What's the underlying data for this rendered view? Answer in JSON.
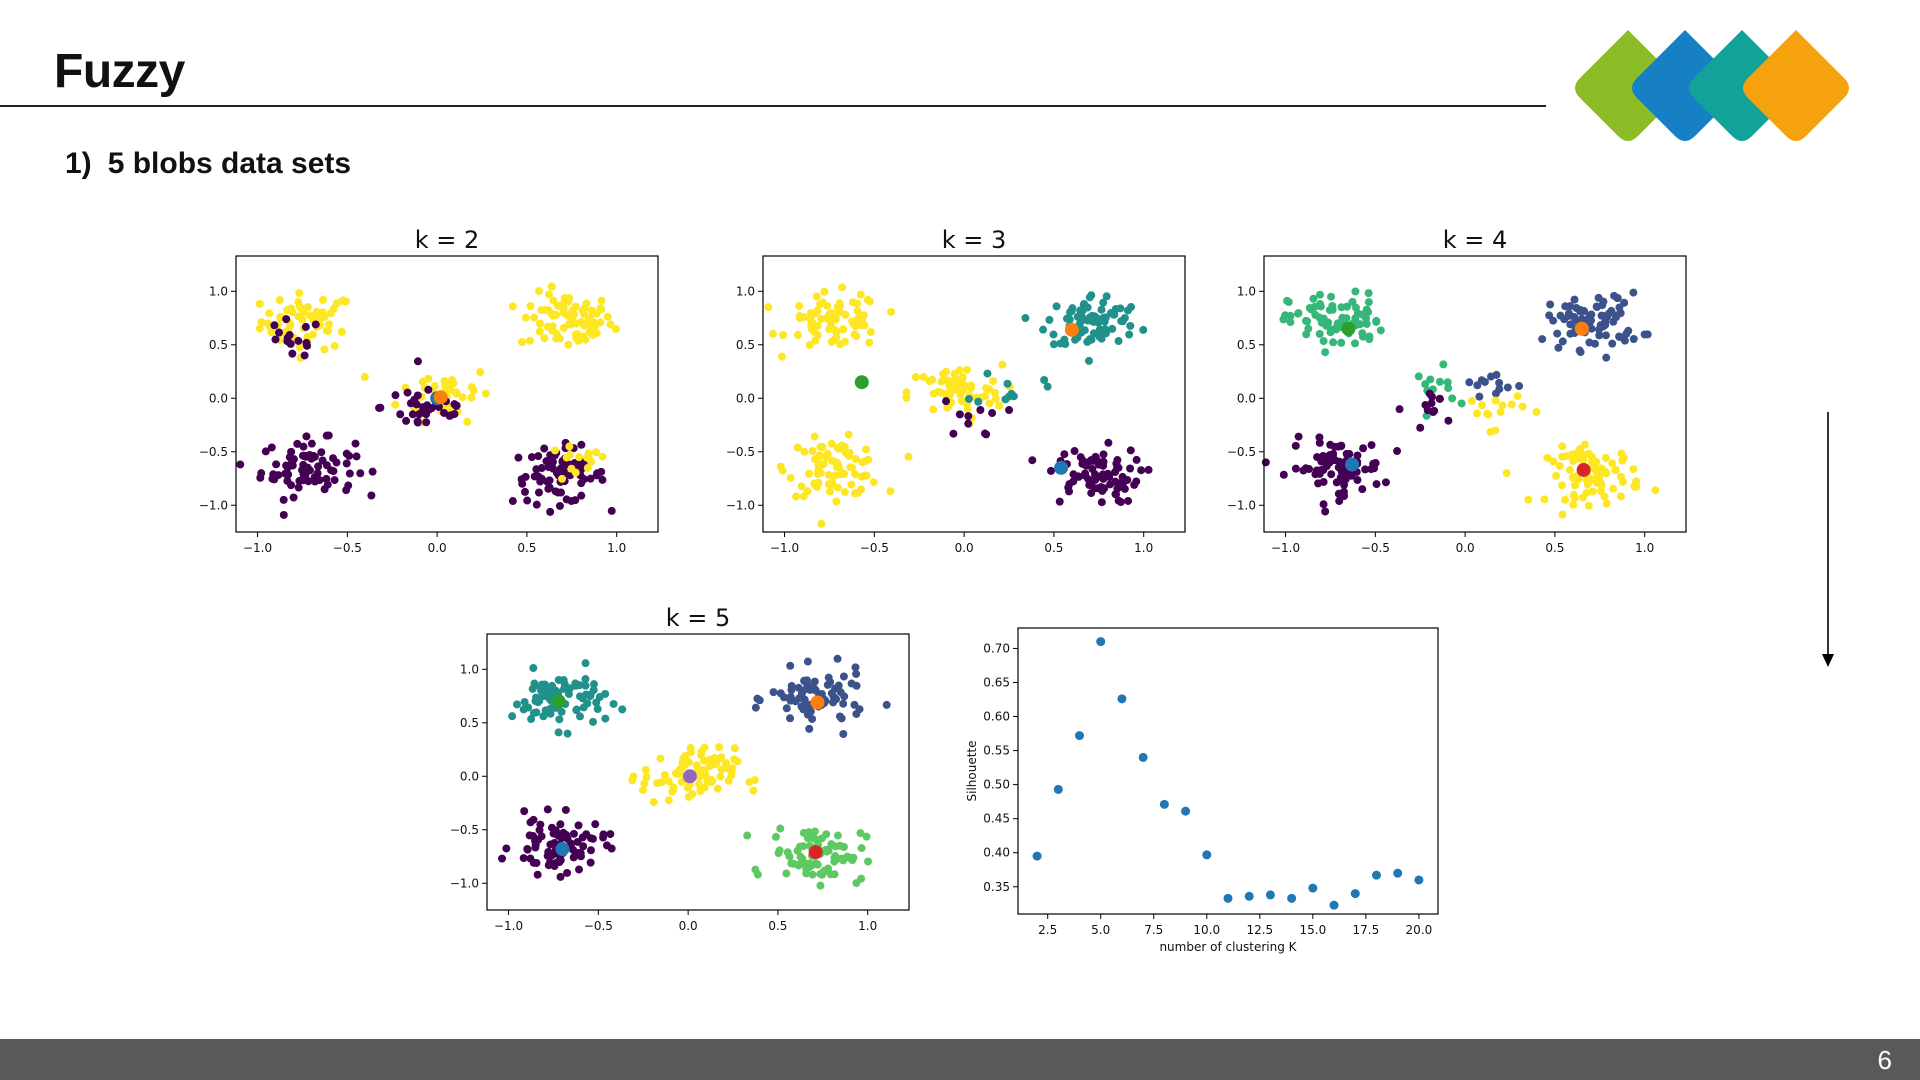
{
  "slide": {
    "title": "Fuzzy",
    "subtitle_number": "1)",
    "subtitle_text": "5 blobs data sets",
    "page_number": "6"
  },
  "logo": {
    "colors": [
      "#8cbd27",
      "#1780c4",
      "#11a39a",
      "#f6a20f"
    ]
  },
  "point_colors": {
    "purple": "#440154",
    "yellow": "#fde725",
    "teal": "#21918c",
    "blue": "#3b528b",
    "green": "#5ec962",
    "mint": "#35b779",
    "centroid_blue": "#1f77b4",
    "centroid_orange": "#ff7f0e",
    "centroid_green": "#2ca02c",
    "centroid_red": "#d62728",
    "centroid_purple": "#9467bd"
  },
  "chart_data": [
    {
      "type": "scatter",
      "title": "k = 2",
      "xlim": [
        -1.12,
        1.23
      ],
      "ylim": [
        -1.25,
        1.33
      ],
      "xticks": [
        -1.0,
        -0.5,
        0.0,
        0.5,
        1.0
      ],
      "xtick_labels": [
        "−1.0",
        "−0.5",
        "0.0",
        "0.5",
        "1.0"
      ],
      "yticks": [
        1.0,
        0.5,
        0.0,
        -0.5,
        -1.0
      ],
      "ytick_labels": [
        "1.0",
        "0.5",
        "0.0",
        "−0.5",
        "−1.0"
      ],
      "blobs": [
        {
          "cx": -0.72,
          "cy": 0.72,
          "color": "yellow",
          "n": 60
        },
        {
          "cx": 0.72,
          "cy": 0.72,
          "color": "yellow",
          "n": 80
        },
        {
          "cx": 0.05,
          "cy": 0.05,
          "color": "yellow",
          "n": 45
        },
        {
          "cx": -0.72,
          "cy": -0.65,
          "color": "purple",
          "n": 80
        },
        {
          "cx": 0.68,
          "cy": -0.72,
          "color": "purple",
          "n": 75
        },
        {
          "cx": -0.05,
          "cy": -0.08,
          "color": "purple",
          "n": 35
        },
        {
          "cx": -0.82,
          "cy": 0.55,
          "color": "purple",
          "n": 15
        },
        {
          "cx": 0.78,
          "cy": -0.62,
          "color": "yellow",
          "n": 15
        }
      ],
      "centroids": [
        {
          "x": 0.0,
          "y": 0.0,
          "color": "centroid_blue"
        },
        {
          "x": 0.02,
          "y": 0.01,
          "color": "centroid_orange"
        }
      ]
    },
    {
      "type": "scatter",
      "title": "k = 3",
      "xlim": [
        -1.12,
        1.23
      ],
      "ylim": [
        -1.25,
        1.33
      ],
      "xticks": [
        -1.0,
        -0.5,
        0.0,
        0.5,
        1.0
      ],
      "xtick_labels": [
        "−1.0",
        "−0.5",
        "0.0",
        "0.5",
        "1.0"
      ],
      "yticks": [
        1.0,
        0.5,
        0.0,
        -0.5,
        -1.0
      ],
      "ytick_labels": [
        "1.0",
        "0.5",
        "0.0",
        "−0.5",
        "−1.0"
      ],
      "blobs": [
        {
          "cx": -0.72,
          "cy": 0.72,
          "color": "yellow",
          "n": 75
        },
        {
          "cx": -0.72,
          "cy": -0.65,
          "color": "yellow",
          "n": 80
        },
        {
          "cx": -0.05,
          "cy": 0.05,
          "color": "yellow",
          "n": 65
        },
        {
          "cx": 0.72,
          "cy": 0.72,
          "color": "teal",
          "n": 80
        },
        {
          "cx": 0.25,
          "cy": 0.1,
          "color": "teal",
          "n": 10
        },
        {
          "cx": 0.72,
          "cy": -0.72,
          "color": "purple",
          "n": 75
        },
        {
          "cx": 0.05,
          "cy": -0.2,
          "color": "purple",
          "n": 10
        }
      ],
      "centroids": [
        {
          "x": -0.57,
          "y": 0.15,
          "color": "centroid_green"
        },
        {
          "x": 0.6,
          "y": 0.64,
          "color": "centroid_orange"
        },
        {
          "x": 0.54,
          "y": -0.65,
          "color": "centroid_blue"
        }
      ]
    },
    {
      "type": "scatter",
      "title": "k = 4",
      "xlim": [
        -1.12,
        1.23
      ],
      "ylim": [
        -1.25,
        1.33
      ],
      "xticks": [
        -1.0,
        -0.5,
        0.0,
        0.5,
        1.0
      ],
      "xtick_labels": [
        "−1.0",
        "−0.5",
        "0.0",
        "0.5",
        "1.0"
      ],
      "yticks": [
        1.0,
        0.5,
        0.0,
        -0.5,
        -1.0
      ],
      "ytick_labels": [
        "1.0",
        "0.5",
        "0.0",
        "−0.5",
        "−1.0"
      ],
      "blobs": [
        {
          "cx": -0.72,
          "cy": 0.72,
          "color": "mint",
          "n": 80
        },
        {
          "cx": 0.72,
          "cy": 0.72,
          "color": "blue",
          "n": 80
        },
        {
          "cx": -0.72,
          "cy": -0.65,
          "color": "purple",
          "n": 80
        },
        {
          "cx": 0.72,
          "cy": -0.72,
          "color": "yellow",
          "n": 80
        },
        {
          "cx": -0.1,
          "cy": 0.1,
          "color": "mint",
          "n": 12
        },
        {
          "cx": 0.12,
          "cy": 0.12,
          "color": "blue",
          "n": 12
        },
        {
          "cx": -0.15,
          "cy": -0.08,
          "color": "purple",
          "n": 12
        },
        {
          "cx": 0.15,
          "cy": -0.1,
          "color": "yellow",
          "n": 14
        }
      ],
      "centroids": [
        {
          "x": -0.65,
          "y": 0.65,
          "color": "centroid_green"
        },
        {
          "x": 0.65,
          "y": 0.65,
          "color": "centroid_orange"
        },
        {
          "x": -0.63,
          "y": -0.62,
          "color": "centroid_blue"
        },
        {
          "x": 0.66,
          "y": -0.67,
          "color": "centroid_red"
        }
      ]
    },
    {
      "type": "scatter",
      "title": "k = 5",
      "xlim": [
        -1.12,
        1.23
      ],
      "ylim": [
        -1.25,
        1.33
      ],
      "xticks": [
        -1.0,
        -0.5,
        0.0,
        0.5,
        1.0
      ],
      "xtick_labels": [
        "−1.0",
        "−0.5",
        "0.0",
        "0.5",
        "1.0"
      ],
      "yticks": [
        1.0,
        0.5,
        0.0,
        -0.5,
        -1.0
      ],
      "ytick_labels": [
        "1.0",
        "0.5",
        "0.0",
        "−0.5",
        "−1.0"
      ],
      "blobs": [
        {
          "cx": -0.72,
          "cy": 0.72,
          "color": "teal",
          "n": 80
        },
        {
          "cx": 0.72,
          "cy": 0.72,
          "color": "blue",
          "n": 80
        },
        {
          "cx": -0.72,
          "cy": -0.65,
          "color": "purple",
          "n": 80
        },
        {
          "cx": 0.72,
          "cy": -0.72,
          "color": "green",
          "n": 80
        },
        {
          "cx": 0.0,
          "cy": 0.0,
          "color": "yellow",
          "n": 80
        }
      ],
      "centroids": [
        {
          "x": -0.72,
          "y": 0.7,
          "color": "centroid_green"
        },
        {
          "x": 0.72,
          "y": 0.69,
          "color": "centroid_orange"
        },
        {
          "x": -0.7,
          "y": -0.68,
          "color": "centroid_blue"
        },
        {
          "x": 0.71,
          "y": -0.71,
          "color": "centroid_red"
        },
        {
          "x": 0.01,
          "y": 0.0,
          "color": "centroid_purple"
        }
      ]
    },
    {
      "type": "scatter",
      "title": "",
      "xlabel": "number of clustering K",
      "ylabel": "Silhouette",
      "xlim": [
        1.1,
        20.9
      ],
      "ylim": [
        0.31,
        0.73
      ],
      "xticks": [
        2.5,
        5.0,
        7.5,
        10.0,
        12.5,
        15.0,
        17.5,
        20.0
      ],
      "xtick_labels": [
        "2.5",
        "5.0",
        "7.5",
        "10.0",
        "12.5",
        "15.0",
        "17.5",
        "20.0"
      ],
      "yticks": [
        0.35,
        0.4,
        0.45,
        0.5,
        0.55,
        0.6,
        0.65,
        0.7
      ],
      "ytick_labels": [
        "0.35",
        "0.40",
        "0.45",
        "0.50",
        "0.55",
        "0.60",
        "0.65",
        "0.70"
      ],
      "x": [
        2,
        3,
        4,
        5,
        6,
        7,
        8,
        9,
        10,
        11,
        12,
        13,
        14,
        15,
        16,
        17,
        18,
        19,
        20
      ],
      "y": [
        0.395,
        0.493,
        0.572,
        0.71,
        0.626,
        0.54,
        0.471,
        0.461,
        0.397,
        0.333,
        0.336,
        0.338,
        0.333,
        0.348,
        0.323,
        0.34,
        0.367,
        0.37,
        0.36
      ],
      "point_color": "#1f77b4"
    }
  ]
}
